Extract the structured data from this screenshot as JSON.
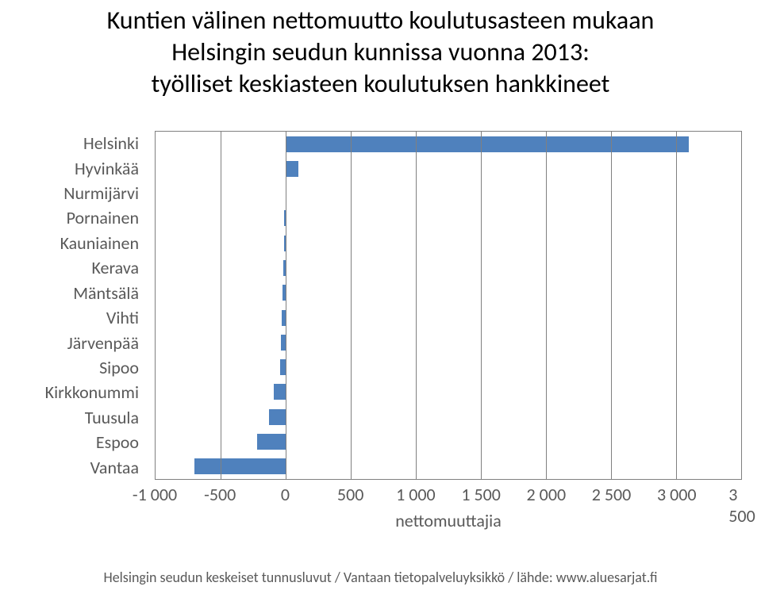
{
  "title_line1": "Kuntien välinen nettomuutto koulutusasteen mukaan",
  "title_line2": "Helsingin seudun kunnissa vuonna 2013:",
  "title_line3": "työlliset keskiasteen koulutuksen hankkineet",
  "chart": {
    "type": "bar-horizontal",
    "xmin": -1000,
    "xmax": 3500,
    "xtick_step": 500,
    "xticks": [
      -1000,
      -500,
      0,
      500,
      1000,
      1500,
      2000,
      2500,
      3000,
      3500
    ],
    "xtick_labels": [
      "-1 000",
      "-500",
      "0",
      "500",
      "1 000",
      "1 500",
      "2 000",
      "2 500",
      "3 000",
      "3 500"
    ],
    "xlabel": "nettomuuttajia",
    "bar_color": "#4f81bd",
    "grid_color": "#808080",
    "border_color": "#808080",
    "background_color": "#ffffff",
    "label_color": "#595959",
    "label_fontsize": 22,
    "title_fontsize": 32,
    "bar_width_ratio": 0.64,
    "categories": [
      "Helsinki",
      "Hyvinkää",
      "Nurmijärvi",
      "Pornainen",
      "Kauniainen",
      "Kerava",
      "Mäntsälä",
      "Vihti",
      "Järvenpää",
      "Sipoo",
      "Kirkkonummi",
      "Tuusula",
      "Espoo",
      "Vantaa"
    ],
    "values": [
      3100,
      100,
      0,
      -10,
      -15,
      -20,
      -25,
      -30,
      -35,
      -40,
      -90,
      -130,
      -220,
      -700
    ]
  },
  "footer": "Helsingin seudun keskeiset tunnusluvut / Vantaan tietopalveluyksikkö / lähde: www.aluesarjat.fi"
}
